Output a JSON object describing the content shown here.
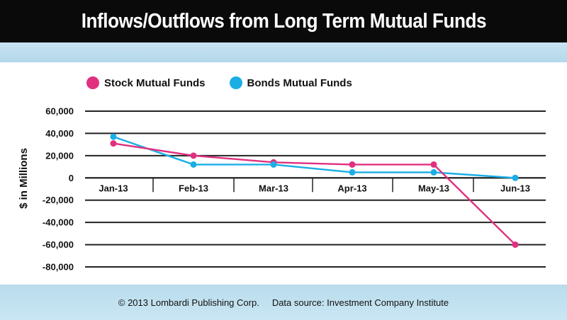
{
  "chart_data": {
    "type": "line",
    "title": "Inflows/Outflows from Long Term Mutual Funds",
    "ylabel": "$ in Millions",
    "xlabel": "",
    "categories": [
      "Jan-13",
      "Feb-13",
      "Mar-13",
      "Apr-13",
      "May-13",
      "Jun-13"
    ],
    "series": [
      {
        "name": "Stock Mutual Funds",
        "color": "#e0307f",
        "values": [
          31000,
          20000,
          14000,
          12000,
          12000,
          -60000
        ]
      },
      {
        "name": "Bonds Mutual Funds",
        "color": "#1aaee5",
        "values": [
          37000,
          12000,
          12000,
          5000,
          5000,
          0
        ]
      }
    ],
    "yticks": [
      60000,
      40000,
      20000,
      0,
      -20000,
      -40000,
      -60000,
      -80000
    ],
    "ytick_labels": [
      "60,000",
      "40,000",
      "20,000",
      "0",
      "-20,000",
      "-40,000",
      "-60,000",
      "-80,000"
    ],
    "ylim": [
      -80000,
      60000
    ],
    "grid": true,
    "legend_position": "top-left"
  },
  "footer": {
    "copyright": "© 2013 Lombardi Publishing Corp.",
    "source": "Data source: Investment Company Institute"
  }
}
